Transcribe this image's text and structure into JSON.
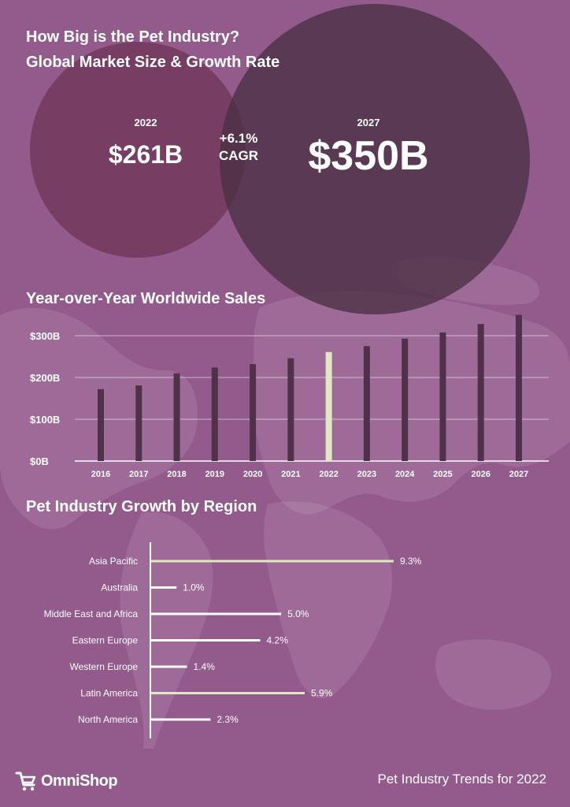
{
  "header": {
    "title_line1": "How Big is the Pet Industry?",
    "title_line2": "Global Market Size & Growth Rate"
  },
  "market": {
    "year_left": "2022",
    "value_left": "$261B",
    "year_right": "2027",
    "value_right": "$350B",
    "cagr_value": "+6.1%",
    "cagr_label": "CAGR"
  },
  "sections": {
    "sales_title": "Year-over-Year Worldwide Sales",
    "region_title": "Pet Industry Growth by Region"
  },
  "colors": {
    "background": "#935a8c",
    "circle_left": "#6e3252",
    "circle_right": "#55374f",
    "bar_dark": "#4f3249",
    "bar_highlight": "#dfe8c3",
    "region_bar": "#ffffff",
    "region_highlight": "#dfe8c3"
  },
  "chart_data": [
    {
      "type": "bar",
      "title": "Year-over-Year Worldwide Sales",
      "categories": [
        "2016",
        "2017",
        "2018",
        "2019",
        "2020",
        "2021",
        "2022",
        "2023",
        "2024",
        "2025",
        "2026",
        "2027"
      ],
      "values": [
        172,
        181,
        210,
        224,
        232,
        246,
        261,
        275,
        293,
        308,
        328,
        350
      ],
      "highlight": "2022",
      "ylim": [
        0,
        350
      ],
      "yticks": [
        0,
        100,
        200,
        300
      ],
      "ytick_labels": [
        "$0B",
        "$100B",
        "$200B",
        "$300B"
      ],
      "grid": true
    },
    {
      "type": "bar",
      "orientation": "horizontal",
      "title": "Pet Industry Growth by Region",
      "categories": [
        "Asia Pacific",
        "Australia",
        "Middle East and Africa",
        "Eastern Europe",
        "Western Europe",
        "Latin America",
        "North America"
      ],
      "values": [
        9.3,
        1.0,
        5.0,
        4.2,
        1.4,
        5.9,
        2.3
      ],
      "value_labels": [
        "9.3%",
        "1.0%",
        "5.0%",
        "4.2%",
        "1.4%",
        "5.9%",
        "2.3%"
      ],
      "highlighted": [
        "Asia Pacific",
        "Latin America"
      ]
    }
  ],
  "footer": {
    "brand": "OmniShop",
    "brand_icon": "shopping-cart-icon",
    "tagline": "Pet Industry Trends for 2022"
  }
}
